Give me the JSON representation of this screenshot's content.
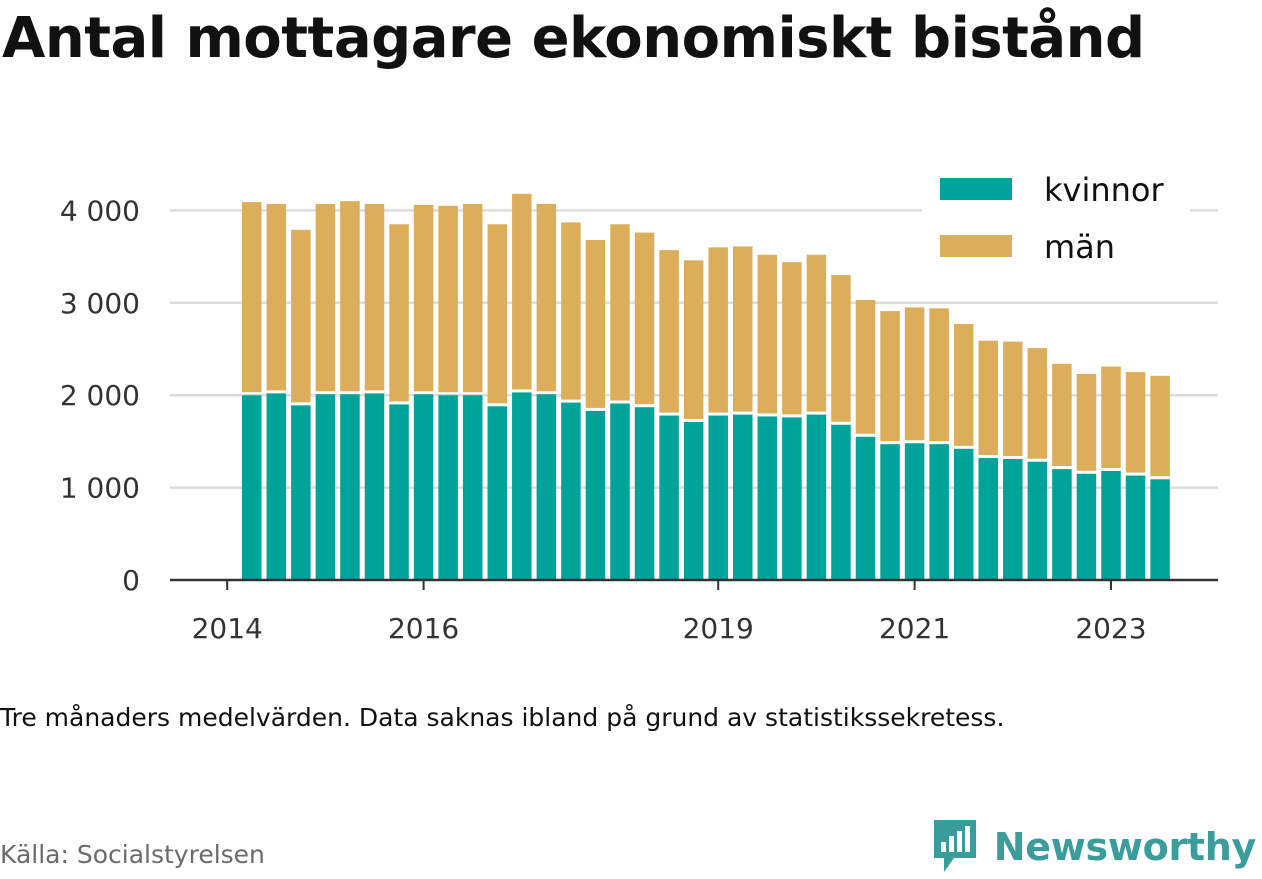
{
  "title": "Antal mottagare ekonomiskt bistånd",
  "note": "Tre månaders medelvärden. Data saknas ibland på grund av statistikssekretess.",
  "source": "Källa: Socialstyrelsen",
  "brand": {
    "name": "Newsworthy",
    "icon": "newsworthy-logo-icon",
    "color": "#3a9d9b"
  },
  "chart_data": {
    "type": "bar",
    "stacked": true,
    "grid": true,
    "legend_position": "top-right",
    "ylim": [
      0,
      4300
    ],
    "y_ticks": [
      {
        "value": 0,
        "label": "0"
      },
      {
        "value": 1000,
        "label": "1 000"
      },
      {
        "value": 2000,
        "label": "2 000"
      },
      {
        "value": 3000,
        "label": "3 000"
      },
      {
        "value": 4000,
        "label": "4 000"
      }
    ],
    "x_ticks": [
      {
        "index": -1,
        "label": "2014"
      },
      {
        "index": 7,
        "label": "2016"
      },
      {
        "index": 19,
        "label": "2019"
      },
      {
        "index": 27,
        "label": "2021"
      },
      {
        "index": 35,
        "label": "2023"
      }
    ],
    "series": [
      {
        "name": "kvinnor",
        "color": "#00a39a",
        "values": [
          2000,
          2020,
          1890,
          2010,
          2010,
          2020,
          1900,
          2010,
          2000,
          2000,
          1880,
          2030,
          2010,
          1920,
          1830,
          1910,
          1870,
          1780,
          1710,
          1780,
          1790,
          1770,
          1760,
          1790,
          1680,
          1550,
          1470,
          1480,
          1470,
          1420,
          1320,
          1310,
          1280,
          1200,
          1150,
          1180,
          1130,
          1090
        ]
      },
      {
        "name": "män",
        "color": "#dcad5b",
        "values": [
          2090,
          2050,
          1900,
          2060,
          2090,
          2050,
          1950,
          2050,
          2050,
          2070,
          1970,
          2150,
          2060,
          1950,
          1850,
          1940,
          1890,
          1790,
          1750,
          1820,
          1820,
          1750,
          1680,
          1730,
          1620,
          1480,
          1440,
          1470,
          1470,
          1350,
          1270,
          1270,
          1230,
          1140,
          1080,
          1130,
          1120,
          1120
        ]
      }
    ]
  }
}
